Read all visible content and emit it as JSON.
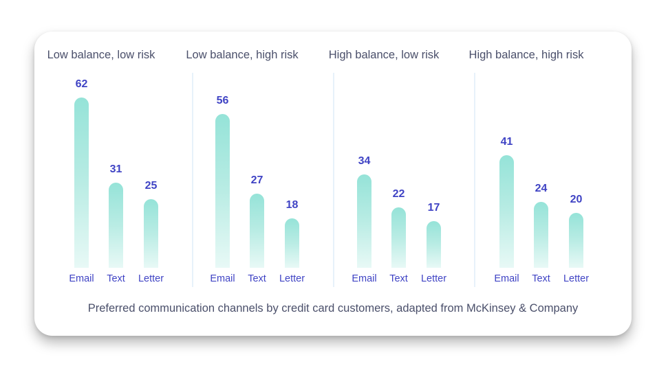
{
  "chart_data": [
    {
      "type": "bar",
      "title": "Low balance, low risk",
      "categories": [
        "Email",
        "Text",
        "Letter"
      ],
      "values": [
        62,
        31,
        25
      ]
    },
    {
      "type": "bar",
      "title": "Low balance, high risk",
      "categories": [
        "Email",
        "Text",
        "Letter"
      ],
      "values": [
        56,
        27,
        18
      ]
    },
    {
      "type": "bar",
      "title": "High balance, low risk",
      "categories": [
        "Email",
        "Text",
        "Letter"
      ],
      "values": [
        34,
        22,
        17
      ]
    },
    {
      "type": "bar",
      "title": "High balance, high risk",
      "categories": [
        "Email",
        "Text",
        "Letter"
      ],
      "values": [
        41,
        24,
        20
      ]
    }
  ],
  "caption": "Preferred communication channels by credit card customers, adapted from McKinsey & Company",
  "colors": {
    "bar_top": "#95e3d8",
    "bar_bottom": "#e8f9f6",
    "value_text": "#3f43c4",
    "title_text": "#4a4f6a",
    "divider": "#e7f1fa"
  }
}
